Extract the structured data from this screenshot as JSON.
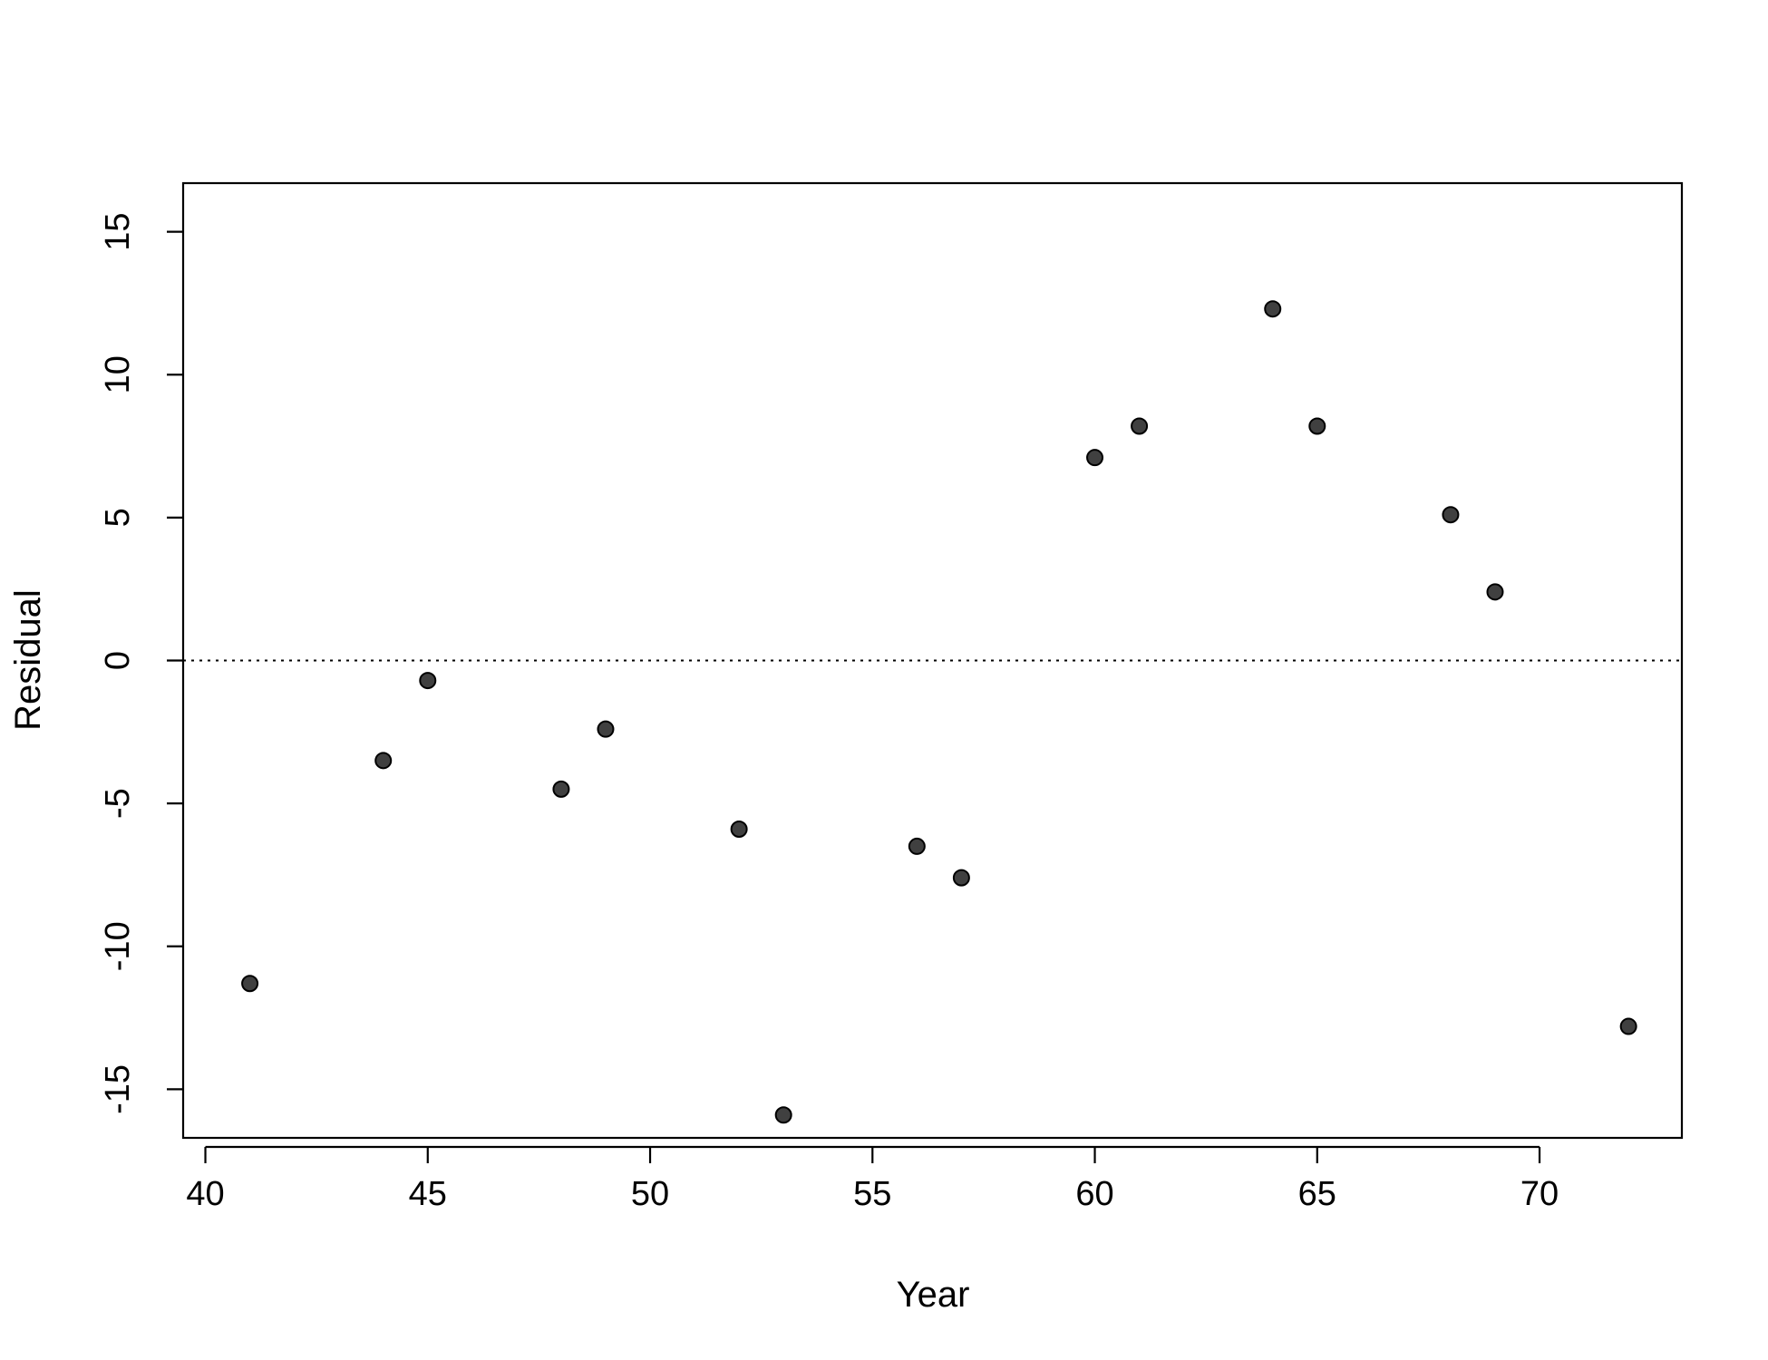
{
  "chart_data": {
    "type": "scatter",
    "title": "",
    "xlabel": "Year",
    "ylabel": "Residual",
    "xlim": [
      39.5,
      73.2
    ],
    "ylim": [
      -16.7,
      16.7
    ],
    "x_ticks": [
      40,
      45,
      50,
      55,
      60,
      65,
      70
    ],
    "y_ticks": [
      -15,
      -10,
      -5,
      0,
      5,
      10,
      15
    ],
    "reference_line": {
      "y": 0,
      "style": "dotted"
    },
    "grid": false,
    "legend": "none",
    "point_color": "#404040",
    "points": [
      {
        "x": 41,
        "y": -11.3
      },
      {
        "x": 44,
        "y": -3.5
      },
      {
        "x": 45,
        "y": -0.7
      },
      {
        "x": 48,
        "y": -4.5
      },
      {
        "x": 49,
        "y": -2.4
      },
      {
        "x": 52,
        "y": -5.9
      },
      {
        "x": 53,
        "y": -15.9
      },
      {
        "x": 56,
        "y": -6.5
      },
      {
        "x": 57,
        "y": -7.6
      },
      {
        "x": 60,
        "y": 7.1
      },
      {
        "x": 61,
        "y": 8.2
      },
      {
        "x": 64,
        "y": 12.3
      },
      {
        "x": 65,
        "y": 8.2
      },
      {
        "x": 68,
        "y": 5.1
      },
      {
        "x": 69,
        "y": 2.4
      },
      {
        "x": 72,
        "y": -12.8
      }
    ]
  }
}
